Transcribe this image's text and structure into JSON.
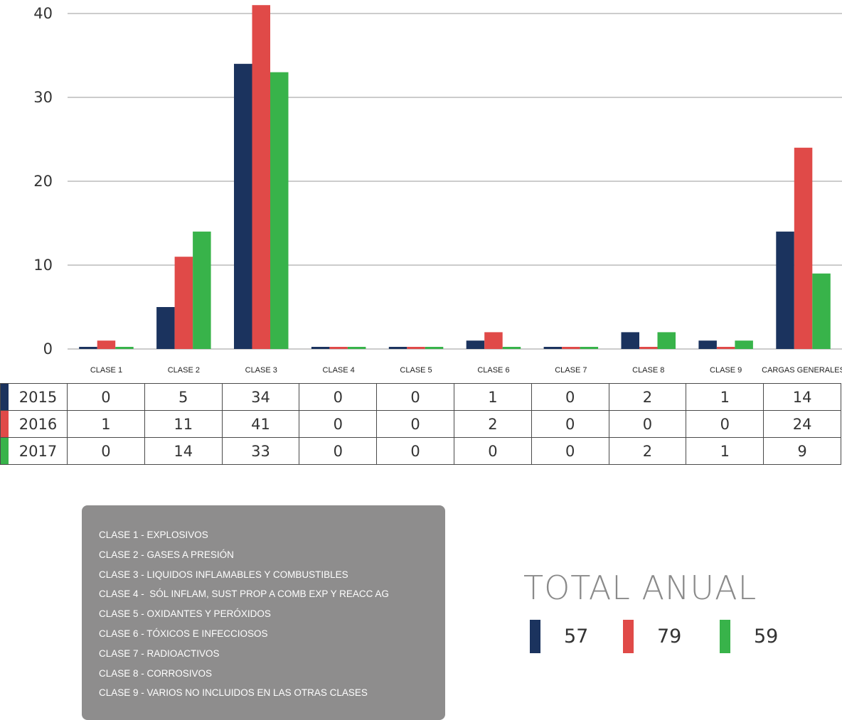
{
  "chart_data": {
    "type": "bar",
    "categories": [
      "CLASE 1",
      "CLASE 2",
      "CLASE 3",
      "CLASE 4",
      "CLASE 5",
      "CLASE 6",
      "CLASE 7",
      "CLASE 8",
      "CLASE 9",
      "CARGAS GENERALES"
    ],
    "series": [
      {
        "name": "2015",
        "color": "#1b335e",
        "values": [
          0,
          5,
          34,
          0,
          0,
          1,
          0,
          2,
          1,
          14
        ]
      },
      {
        "name": "2016",
        "color": "#e04a48",
        "values": [
          1,
          11,
          41,
          0,
          0,
          2,
          0,
          0,
          0,
          24
        ]
      },
      {
        "name": "2017",
        "color": "#38b34a",
        "values": [
          0,
          14,
          33,
          0,
          0,
          0,
          0,
          2,
          1,
          9
        ]
      }
    ],
    "ylim": [
      0,
      40
    ],
    "yticks": [
      "0",
      "10",
      "20",
      "30",
      "40"
    ],
    "grid": true
  },
  "table": {
    "rows": [
      {
        "year": "2015",
        "color": "#1b335e",
        "cells": [
          "0",
          "5",
          "34",
          "0",
          "0",
          "1",
          "0",
          "2",
          "1",
          "14"
        ]
      },
      {
        "year": "2016",
        "color": "#e04a48",
        "cells": [
          "1",
          "11",
          "41",
          "0",
          "0",
          "2",
          "0",
          "0",
          "0",
          "24"
        ]
      },
      {
        "year": "2017",
        "color": "#38b34a",
        "cells": [
          "0",
          "14",
          "33",
          "0",
          "0",
          "0",
          "0",
          "2",
          "1",
          "9"
        ]
      }
    ]
  },
  "legend_box": {
    "lines": [
      "CLASE 1 - EXPLOSIVOS",
      "CLASE 2 - GASES A PRESIÓN",
      "CLASE 3 - LIQUIDOS INFLAMABLES Y COMBUSTIBLES",
      "CLASE 4 -  SÓL INFLAM, SUST PROP A COMB EXP Y REACC AG",
      "CLASE 5 - OXIDANTES Y PERÓXIDOS",
      "CLASE 6 - TÓXICOS E INFECCIOSOS",
      "CLASE 7 - RADIOACTIVOS",
      "CLASE 8 - CORROSIVOS",
      "CLASE 9 - VARIOS NO INCLUIDOS EN LAS OTRAS CLASES"
    ]
  },
  "total_anual": {
    "title": "TOTAL ANUAL",
    "items": [
      {
        "color": "#1b335e",
        "value": "57"
      },
      {
        "color": "#e04a48",
        "value": "79"
      },
      {
        "color": "#38b34a",
        "value": "59"
      }
    ]
  }
}
